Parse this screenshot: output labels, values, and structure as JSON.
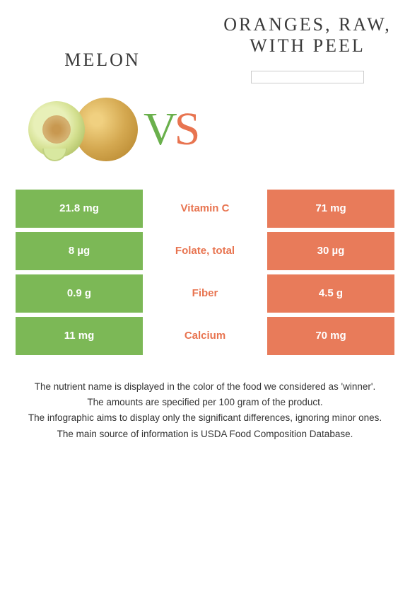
{
  "left_food": {
    "title": "MELON",
    "color": "#7cb856"
  },
  "right_food": {
    "title": "ORANGES, RAW, WITH PEEL",
    "color": "#e87b5a"
  },
  "vs": {
    "v_color": "#6ab04c",
    "s_color": "#e87450"
  },
  "rows": [
    {
      "left": "21.8 mg",
      "label": "Vitamin C",
      "right": "71 mg"
    },
    {
      "left": "8 µg",
      "label": "Folate, total",
      "right": "30 µg"
    },
    {
      "left": "0.9 g",
      "label": "Fiber",
      "right": "4.5 g"
    },
    {
      "left": "11 mg",
      "label": "Calcium",
      "right": "70 mg"
    }
  ],
  "footer": [
    "The nutrient name is displayed in the color of the food we considered as 'winner'.",
    "The amounts are specified per 100 gram of the product.",
    "The infographic aims to display only the significant differences, ignoring minor ones.",
    "The main source of information is USDA Food Composition Database."
  ]
}
